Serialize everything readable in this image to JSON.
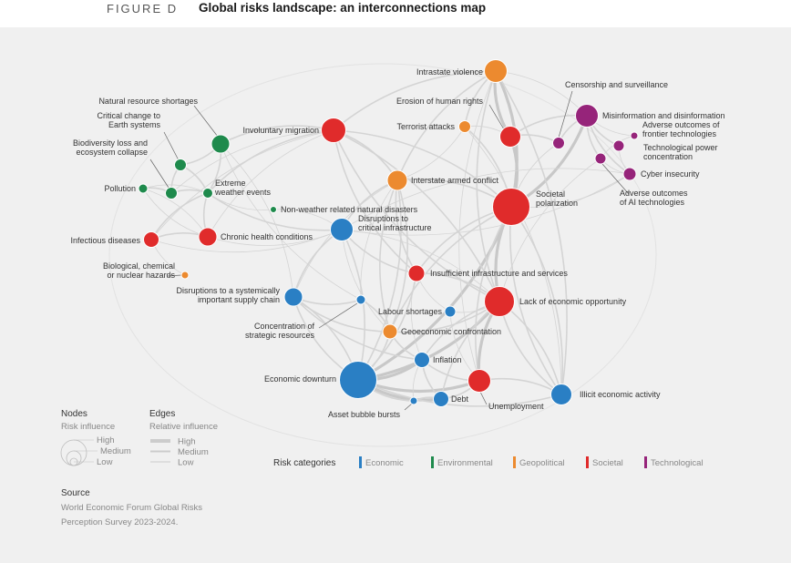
{
  "figure_label": "FIGURE D",
  "title": "Global risks landscape: an interconnections map",
  "colors": {
    "Economic": "#2a7fc4",
    "Environmental": "#1e8a4c",
    "Geopolitical": "#ec8a2f",
    "Societal": "#e02b2b",
    "Technological": "#96247a",
    "edge": "#cfcfcf",
    "panel": "#f0f0f0"
  },
  "nodes": [
    {
      "label": "Intrastate violence",
      "category": "Geopolitical"
    },
    {
      "label": "Erosion of human rights",
      "category": "Societal"
    },
    {
      "label": "Terrorist attacks",
      "category": "Geopolitical"
    },
    {
      "label": "Censorship and surveillance",
      "category": "Technological"
    },
    {
      "label": "Misinformation and disinformation",
      "category": "Technological"
    },
    {
      "label": "Adverse outcomes of frontier technologies",
      "category": "Technological"
    },
    {
      "label": "Technological power concentration",
      "category": "Technological"
    },
    {
      "label": "Cyber insecurity",
      "category": "Technological"
    },
    {
      "label": "Adverse outcomes of AI technologies",
      "category": "Technological"
    },
    {
      "label": "Natural resource shortages",
      "category": "Environmental"
    },
    {
      "label": "Critical change to Earth systems",
      "category": "Environmental"
    },
    {
      "label": "Biodiversity loss and ecosystem collapse",
      "category": "Environmental"
    },
    {
      "label": "Pollution",
      "category": "Environmental"
    },
    {
      "label": "Extreme weather events",
      "category": "Environmental"
    },
    {
      "label": "Involuntary migration",
      "category": "Societal"
    },
    {
      "label": "Interstate armed conflict",
      "category": "Geopolitical"
    },
    {
      "label": "Societal polarization",
      "category": "Societal"
    },
    {
      "label": "Non-weather related natural disasters",
      "category": "Environmental"
    },
    {
      "label": "Disruptions to critical infrastructure",
      "category": "Economic"
    },
    {
      "label": "Infectious diseases",
      "category": "Societal"
    },
    {
      "label": "Chronic health conditions",
      "category": "Societal"
    },
    {
      "label": "Biological, chemical or nuclear hazards",
      "category": "Geopolitical"
    },
    {
      "label": "Insufficient infrastructure and services",
      "category": "Societal"
    },
    {
      "label": "Disruptions to a systemically important supply chain",
      "category": "Economic"
    },
    {
      "label": "Lack of economic opportunity",
      "category": "Societal"
    },
    {
      "label": "Labour shortages",
      "category": "Economic"
    },
    {
      "label": "Concentration of strategic resources",
      "category": "Economic"
    },
    {
      "label": "Geoeconomic confrontation",
      "category": "Geopolitical"
    },
    {
      "label": "Inflation",
      "category": "Economic"
    },
    {
      "label": "Economic downturn",
      "category": "Economic"
    },
    {
      "label": "Unemployment",
      "category": "Societal"
    },
    {
      "label": "Illicit economic activity",
      "category": "Economic"
    },
    {
      "label": "Debt",
      "category": "Economic"
    },
    {
      "label": "Asset bubble bursts",
      "category": "Economic"
    }
  ],
  "legend": {
    "nodes_title": "Nodes",
    "nodes_sub": "Risk influence",
    "edges_title": "Edges",
    "edges_sub": "Relative influence",
    "levels": [
      "High",
      "Medium",
      "Low"
    ],
    "categories_title": "Risk categories",
    "categories": [
      "Economic",
      "Environmental",
      "Geopolitical",
      "Societal",
      "Technological"
    ]
  },
  "source": {
    "title": "Source",
    "line1": "World Economic Forum Global Risks",
    "line2": "Perception Survey 2023-2024."
  }
}
